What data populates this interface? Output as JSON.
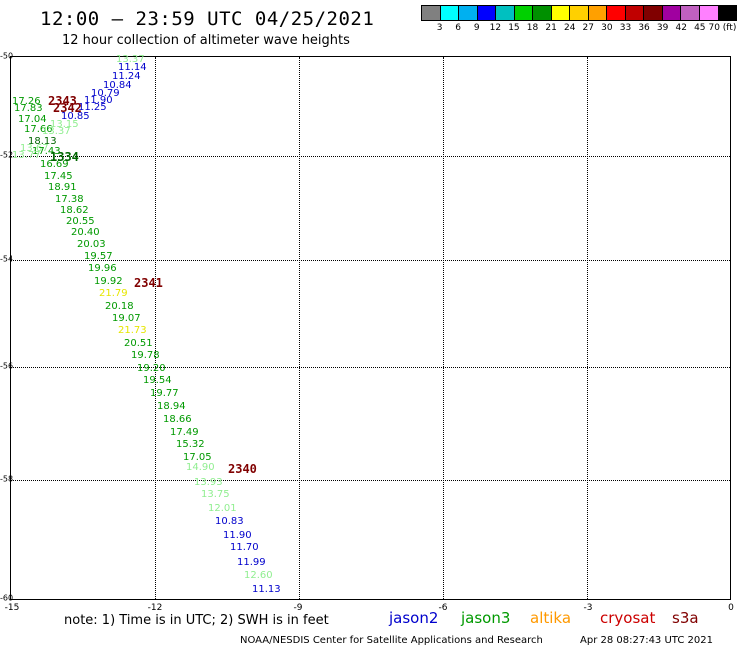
{
  "header": {
    "title": "12:00 — 23:59 UTC 04/25/2021",
    "subtitle": "12 hour collection of altimeter wave heights"
  },
  "scale": {
    "colors": [
      "#808080",
      "#00ffff",
      "#00b0f0",
      "#0000ff",
      "#00c0c0",
      "#00d000",
      "#009000",
      "#ffff00",
      "#ffd000",
      "#ffa000",
      "#ff0000",
      "#c00000",
      "#800000",
      "#a000a0",
      "#c060c0",
      "#ff80ff",
      "#000000"
    ],
    "labels": [
      "3",
      "6",
      "9",
      "12",
      "15",
      "18",
      "21",
      "24",
      "27",
      "30",
      "33",
      "36",
      "39",
      "42",
      "45",
      "70 (ft)"
    ]
  },
  "axes": {
    "x_ticks": [
      "-15",
      "-12",
      "-9",
      "-6",
      "-3",
      "0"
    ],
    "y_ticks": [
      "-50",
      "-52",
      "-54",
      "-56",
      "-58",
      "-60"
    ]
  },
  "stamps": [
    "2343",
    "2342",
    "1334",
    "2341",
    "2340"
  ],
  "points": [
    {
      "v": "13.37",
      "c": "#90ee90"
    },
    {
      "v": "11.14",
      "c": "#0000cc"
    },
    {
      "v": "11.24",
      "c": "#0000cc"
    },
    {
      "v": "10.84",
      "c": "#0000cc"
    },
    {
      "v": "10.79",
      "c": "#0000cc"
    },
    {
      "v": "11.90",
      "c": "#0000cc"
    },
    {
      "v": "17.26",
      "c": "#009900"
    },
    {
      "v": "11.25",
      "c": "#0000cc"
    },
    {
      "v": "17.83",
      "c": "#009900"
    },
    {
      "v": "10.85",
      "c": "#0000cc"
    },
    {
      "v": "17.04",
      "c": "#009900"
    },
    {
      "v": "13.15",
      "c": "#90ee90"
    },
    {
      "v": "17.66",
      "c": "#009900"
    },
    {
      "v": "13.37",
      "c": "#90ee90"
    },
    {
      "v": "18.13",
      "c": "#006600"
    },
    {
      "v": "13.67",
      "c": "#90ee90"
    },
    {
      "v": "17.43",
      "c": "#009900"
    },
    {
      "v": "13.77",
      "c": "#90ee90"
    },
    {
      "v": "16.69",
      "c": "#009900"
    },
    {
      "v": "17.45",
      "c": "#009900"
    },
    {
      "v": "18.91",
      "c": "#009900"
    },
    {
      "v": "17.38",
      "c": "#009900"
    },
    {
      "v": "18.62",
      "c": "#009900"
    },
    {
      "v": "20.55",
      "c": "#009900"
    },
    {
      "v": "20.40",
      "c": "#009900"
    },
    {
      "v": "20.03",
      "c": "#009900"
    },
    {
      "v": "19.57",
      "c": "#009900"
    },
    {
      "v": "19.96",
      "c": "#009900"
    },
    {
      "v": "19.92",
      "c": "#009900"
    },
    {
      "v": "21.79",
      "c": "#e6e600"
    },
    {
      "v": "20.18",
      "c": "#009900"
    },
    {
      "v": "19.07",
      "c": "#009900"
    },
    {
      "v": "21.73",
      "c": "#e6e600"
    },
    {
      "v": "20.51",
      "c": "#009900"
    },
    {
      "v": "19.78",
      "c": "#009900"
    },
    {
      "v": "19.20",
      "c": "#009900"
    },
    {
      "v": "19.54",
      "c": "#009900"
    },
    {
      "v": "19.77",
      "c": "#009900"
    },
    {
      "v": "18.94",
      "c": "#009900"
    },
    {
      "v": "18.66",
      "c": "#009900"
    },
    {
      "v": "17.49",
      "c": "#009900"
    },
    {
      "v": "15.32",
      "c": "#009900"
    },
    {
      "v": "17.05",
      "c": "#009900"
    },
    {
      "v": "14.90",
      "c": "#90ee90"
    },
    {
      "v": "13.93",
      "c": "#90ee90"
    },
    {
      "v": "13.75",
      "c": "#90ee90"
    },
    {
      "v": "12.01",
      "c": "#90ee90"
    },
    {
      "v": "10.83",
      "c": "#0000cc"
    },
    {
      "v": "11.90",
      "c": "#0000cc"
    },
    {
      "v": "11.70",
      "c": "#0000cc"
    },
    {
      "v": "11.99",
      "c": "#0000cc"
    },
    {
      "v": "12.60",
      "c": "#90ee90"
    },
    {
      "v": "11.13",
      "c": "#0000cc"
    }
  ],
  "legend": {
    "note": "note: 1) Time is in UTC; 2) SWH is in feet",
    "missions": [
      {
        "name": "jason2",
        "color": "#0000cc"
      },
      {
        "name": "jason3",
        "color": "#009900"
      },
      {
        "name": "altika",
        "color": "#ff9900"
      },
      {
        "name": "cryosat",
        "color": "#cc0000"
      },
      {
        "name": "s3a",
        "color": "#800000"
      }
    ]
  },
  "footer": {
    "credit": "NOAA/NESDIS Center for Satellite Applications and Research",
    "timestamp": "Apr 28 08:27:43 UTC 2021"
  }
}
